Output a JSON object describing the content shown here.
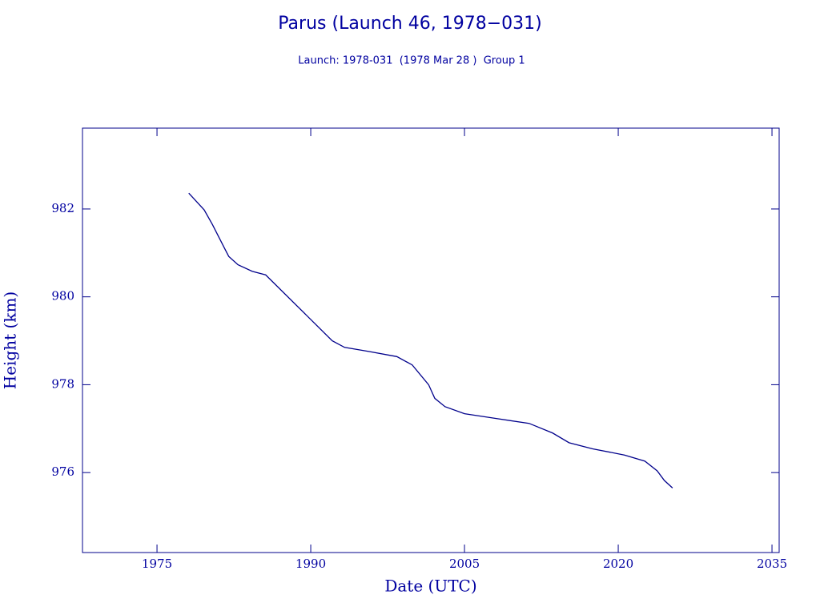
{
  "chart_data": {
    "type": "line",
    "title": "Parus (Launch 46, 1978−031)",
    "subtitle": "Launch: 1978-031  (1978 Mar 28 )  Group 1",
    "x_label": "Date (UTC)",
    "y_label": "Height (km)",
    "color": "#00008b",
    "x": [
      1978.1,
      1979.6,
      1980.4,
      1981.6,
      1982.0,
      1982.9,
      1984.3,
      1985.6,
      1992.1,
      1993.3,
      1995.6,
      1998.4,
      1999.9,
      2001.5,
      2002.1,
      2003.1,
      2005.0,
      2008.1,
      2011.3,
      2013.6,
      2015.2,
      2017.5,
      2020.6,
      2022.6,
      2023.8,
      2024.5,
      2025.3
    ],
    "values": [
      982.36,
      981.98,
      981.65,
      981.1,
      980.92,
      980.73,
      980.58,
      980.5,
      979.0,
      978.85,
      978.76,
      978.64,
      978.45,
      978.0,
      977.69,
      977.5,
      977.34,
      977.23,
      977.12,
      976.9,
      976.68,
      976.54,
      976.4,
      976.26,
      976.04,
      975.82,
      975.65
    ],
    "xlim": [
      1967.73,
      2035.7
    ],
    "ylim": [
      974.18,
      983.84
    ],
    "xticks": [
      1975,
      1990,
      2005,
      2020,
      2035
    ],
    "yticks": [
      976,
      978,
      980,
      982
    ]
  }
}
